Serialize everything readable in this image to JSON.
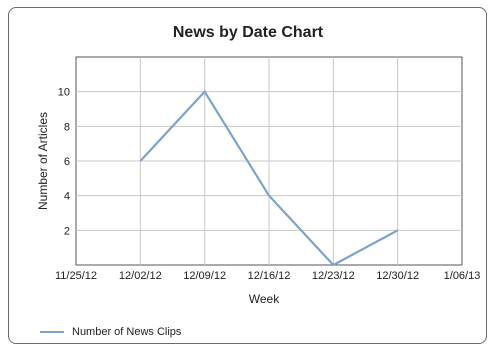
{
  "chart_data": {
    "type": "line",
    "title": "News by Date Chart",
    "xlabel": "Week",
    "ylabel": "Number of Articles",
    "x_ticks": [
      "11/25/12",
      "12/02/12",
      "12/09/12",
      "12/16/12",
      "12/23/12",
      "12/30/12",
      "1/06/13"
    ],
    "y_ticks": [
      2,
      4,
      6,
      8,
      10
    ],
    "ylim": [
      0,
      12
    ],
    "series": [
      {
        "name": "Number of News Clips",
        "color": "#7ba3cc",
        "points": [
          {
            "x": "12/02/12",
            "y": 6
          },
          {
            "x": "12/09/12",
            "y": 10
          },
          {
            "x": "12/16/12",
            "y": 4
          },
          {
            "x": "12/23/12",
            "y": 0
          },
          {
            "x": "12/30/12",
            "y": 2
          }
        ]
      }
    ],
    "grid": true,
    "legend_position": "bottom-left"
  }
}
